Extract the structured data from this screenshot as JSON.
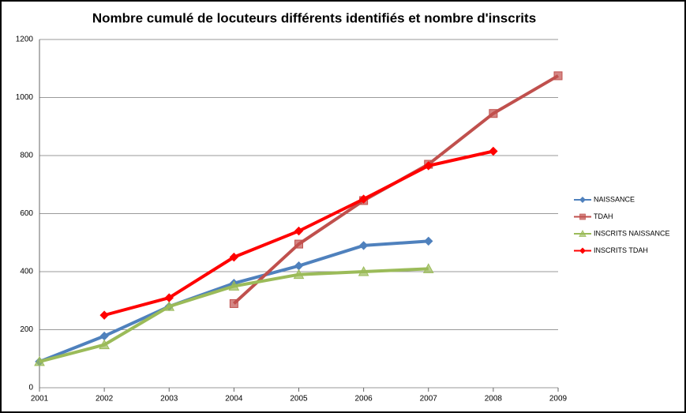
{
  "chart_data": {
    "type": "line",
    "title": "Nombre cumulé de locuteurs différents identifiés et nombre d'inscrits",
    "x": [
      2001,
      2002,
      2003,
      2004,
      2005,
      2006,
      2007,
      2008,
      2009
    ],
    "xlim": [
      2001,
      2009
    ],
    "xticks": [
      2001,
      2002,
      2003,
      2004,
      2005,
      2006,
      2007,
      2008,
      2009
    ],
    "ylim": [
      0,
      1200
    ],
    "yticks": [
      0,
      200,
      400,
      600,
      800,
      1000,
      1200
    ],
    "grid": true,
    "legend": "right",
    "series": [
      {
        "name": "NAISSANCE",
        "color": "#4f81bd",
        "marker": "diamond",
        "values": [
          90,
          178,
          280,
          360,
          420,
          490,
          505,
          null,
          null
        ]
      },
      {
        "name": "TDAH",
        "color": "#c0504d",
        "marker": "square",
        "values": [
          null,
          null,
          null,
          290,
          495,
          645,
          770,
          945,
          1075
        ]
      },
      {
        "name": "INSCRITS NAISSANCE",
        "color": "#9bbb59",
        "marker": "triangle",
        "values": [
          90,
          148,
          280,
          350,
          390,
          400,
          410,
          null,
          null
        ]
      },
      {
        "name": "INSCRITS TDAH",
        "color": "#ff0000",
        "marker": "diamond",
        "values": [
          null,
          250,
          310,
          450,
          540,
          650,
          765,
          815,
          null
        ]
      }
    ]
  }
}
